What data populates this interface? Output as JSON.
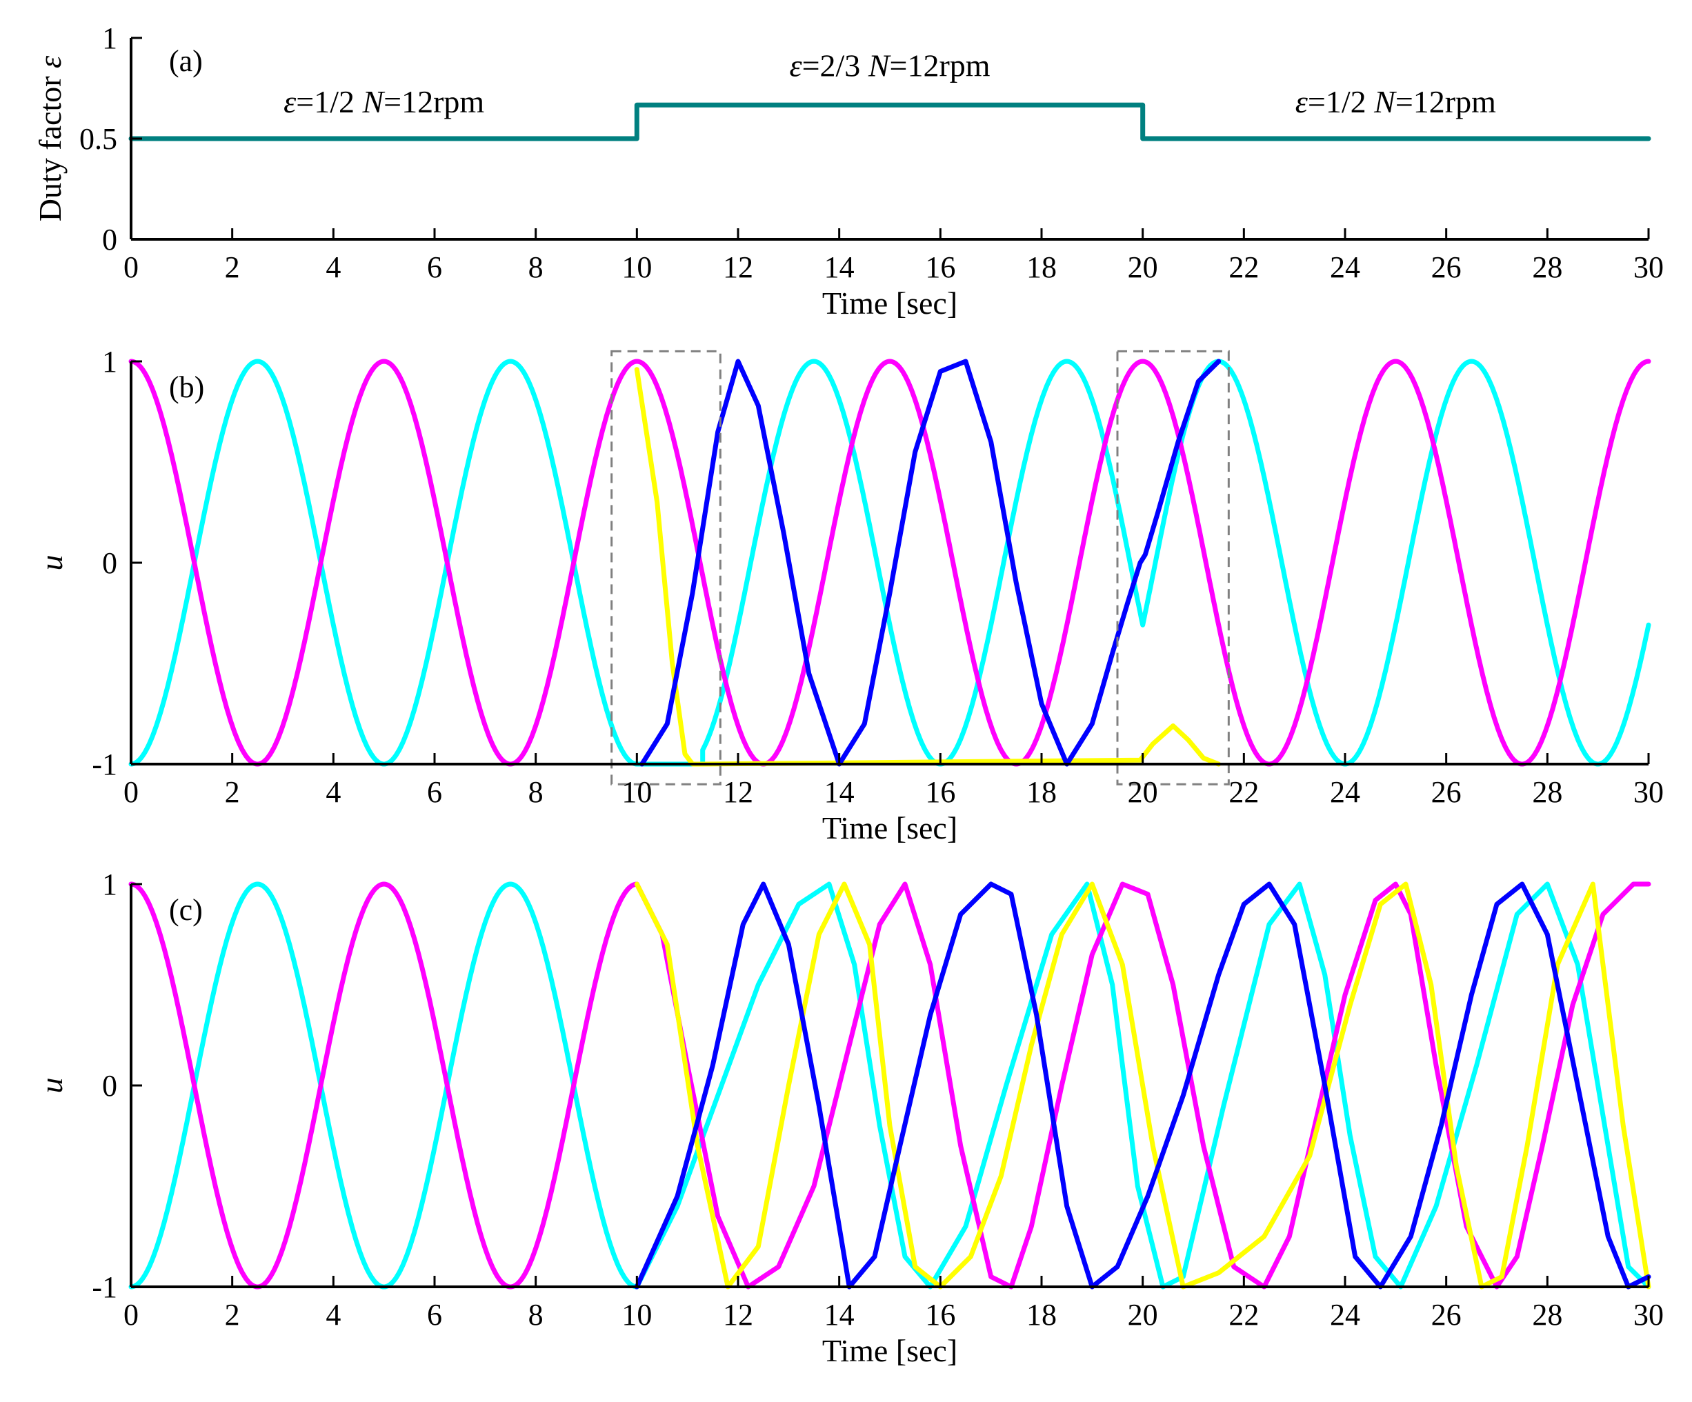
{
  "figure": {
    "colors": {
      "axis": "#000000",
      "duty_line": "#008080",
      "box": "#808080",
      "yellow": "#FFFF00",
      "blue": "#0000FF",
      "cyan": "#00FFFF",
      "magenta": "#FF00FF"
    }
  },
  "chart_data": [
    {
      "id": "a",
      "type": "line",
      "panel_label": "(a)",
      "title": "",
      "xlabel": "Time [sec]",
      "ylabel_text": "Duty factor ",
      "ylabel_symbol": "ε",
      "xlim": [
        0,
        30
      ],
      "ylim": [
        0,
        1
      ],
      "xticks": [
        0,
        2,
        4,
        6,
        8,
        10,
        12,
        14,
        16,
        18,
        20,
        22,
        24,
        26,
        28,
        30
      ],
      "xtick_labels": [
        "0",
        "2",
        "4",
        "6",
        "8",
        "10",
        "12",
        "14",
        "16",
        "18",
        "20",
        "22",
        "24",
        "26",
        "28",
        "30"
      ],
      "yticks": [
        0,
        0.5,
        1
      ],
      "ytick_labels": [
        "0",
        "0.5",
        "1"
      ],
      "series": [
        {
          "name": "duty factor",
          "color_key": "duty_line",
          "x": [
            0,
            10,
            10,
            20,
            20,
            30
          ],
          "y": [
            0.5,
            0.5,
            0.6667,
            0.6667,
            0.5,
            0.5
          ]
        }
      ],
      "annotations": [
        {
          "eps": "ε",
          "eq1": "=1/2 ",
          "n": "N",
          "eq2": "=12rpm",
          "x": 5,
          "y": 0.63
        },
        {
          "eps": "ε",
          "eq1": "=2/3 ",
          "n": "N",
          "eq2": "=12rpm",
          "x": 15,
          "y": 0.81
        },
        {
          "eps": "ε",
          "eq1": "=1/2 ",
          "n": "N",
          "eq2": "=12rpm",
          "x": 25,
          "y": 0.63
        }
      ]
    },
    {
      "id": "b",
      "type": "line",
      "panel_label": "(b)",
      "title": "",
      "xlabel": "Time [sec]",
      "ylabel_symbol": "u",
      "xlim": [
        0,
        30
      ],
      "ylim": [
        -1,
        1
      ],
      "xticks": [
        0,
        2,
        4,
        6,
        8,
        10,
        12,
        14,
        16,
        18,
        20,
        22,
        24,
        26,
        28,
        30
      ],
      "xtick_labels": [
        "0",
        "2",
        "4",
        "6",
        "8",
        "10",
        "12",
        "14",
        "16",
        "18",
        "20",
        "22",
        "24",
        "26",
        "28",
        "30"
      ],
      "yticks": [
        -1,
        0,
        1
      ],
      "ytick_labels": [
        "-1",
        "0",
        "1"
      ],
      "dashed_boxes": [
        {
          "x": [
            9.5,
            11.65
          ],
          "y": [
            -1.1,
            1.05
          ]
        },
        {
          "x": [
            19.5,
            21.7
          ],
          "y": [
            -1.1,
            1.05
          ]
        }
      ],
      "series": [
        {
          "name": "yellow",
          "color_key": "yellow",
          "x": [
            10,
            10.4,
            10.7,
            10.95,
            11.1,
            11.3,
            19.95,
            20.2,
            20.6,
            20.9,
            21.2,
            21.5
          ],
          "y": [
            0.96,
            0.3,
            -0.5,
            -0.95,
            -1,
            -1,
            -0.98,
            -0.9,
            -0.81,
            -0.88,
            -0.97,
            -1
          ]
        },
        {
          "name": "blue",
          "color_key": "blue",
          "x": [
            10.1,
            10.6,
            11.1,
            11.6,
            12.0,
            12.4,
            12.9,
            13.4,
            14.0,
            14.5,
            15.0,
            15.5,
            16.0,
            16.5,
            17.0,
            17.5,
            18.0,
            18.5,
            19.0,
            19.4,
            19.7,
            19.95,
            20.05,
            20.3,
            20.7,
            21.1,
            21.5
          ],
          "y": [
            -1,
            -0.8,
            -0.15,
            0.65,
            1,
            0.78,
            0.15,
            -0.55,
            -1,
            -0.8,
            -0.15,
            0.55,
            0.95,
            1,
            0.6,
            -0.1,
            -0.7,
            -1,
            -0.8,
            -0.45,
            -0.2,
            0.0,
            0.04,
            0.25,
            0.6,
            0.9,
            1
          ]
        }
      ],
      "sinusoids": [
        {
          "name": "cyan",
          "color_key": "cyan",
          "segments": [
            {
              "t0": 0,
              "t1": 10,
              "phase_t": 0,
              "period": 5,
              "sign": -1
            },
            {
              "t0": 10,
              "t1": 11.3,
              "flat": -1
            },
            {
              "t0": 11.3,
              "t1": 20,
              "phase_t": 11.0,
              "period": 5,
              "sign": -1,
              "half_period_shift": 0
            },
            {
              "t0": 20,
              "t1": 30,
              "phase_t": 19.0,
              "period": 5,
              "sign": -1
            }
          ]
        },
        {
          "name": "magenta",
          "color_key": "magenta",
          "segments": [
            {
              "t0": 0,
              "t1": 30,
              "phase_t": 0,
              "period": 5,
              "sign": 1
            }
          ]
        }
      ]
    },
    {
      "id": "c",
      "type": "line",
      "panel_label": "(c)",
      "title": "",
      "xlabel": "Time [sec]",
      "ylabel_symbol": "u",
      "xlim": [
        0,
        30
      ],
      "ylim": [
        -1,
        1
      ],
      "xticks": [
        0,
        2,
        4,
        6,
        8,
        10,
        12,
        14,
        16,
        18,
        20,
        22,
        24,
        26,
        28,
        30
      ],
      "xtick_labels": [
        "0",
        "2",
        "4",
        "6",
        "8",
        "10",
        "12",
        "14",
        "16",
        "18",
        "20",
        "22",
        "24",
        "26",
        "28",
        "30"
      ],
      "yticks": [
        -1,
        0,
        1
      ],
      "ytick_labels": [
        "-1",
        "0",
        "1"
      ],
      "series": [
        {
          "name": "yellow",
          "color_key": "yellow",
          "x": [
            10,
            10.6,
            11.2,
            11.8,
            12.4,
            13.0,
            13.6,
            14.1,
            14.6,
            15.0,
            15.5,
            16.0,
            16.6,
            17.2,
            17.8,
            18.4,
            19.0,
            19.6,
            20.2,
            20.8,
            21.5,
            22.4,
            23.3,
            24.1,
            24.7,
            25.2,
            25.7,
            26.2,
            26.7,
            27.1,
            27.6,
            28.2,
            28.9,
            29.5,
            30
          ],
          "y": [
            1,
            0.7,
            -0.3,
            -1,
            -0.8,
            0.0,
            0.75,
            1,
            0.7,
            -0.2,
            -0.9,
            -1,
            -0.85,
            -0.45,
            0.2,
            0.75,
            1,
            0.6,
            -0.3,
            -1,
            -0.93,
            -0.75,
            -0.35,
            0.4,
            0.9,
            1,
            0.5,
            -0.4,
            -1,
            -0.95,
            -0.3,
            0.6,
            1,
            -0.2,
            -1
          ]
        },
        {
          "name": "blue",
          "color_key": "blue",
          "x": [
            10,
            10.8,
            11.5,
            12.1,
            12.5,
            13.0,
            13.6,
            14.2,
            14.7,
            15.2,
            15.8,
            16.4,
            17.0,
            17.4,
            17.9,
            18.5,
            19.0,
            19.5,
            20.1,
            20.8,
            21.5,
            22.0,
            22.5,
            23.0,
            23.6,
            24.2,
            24.7,
            25.3,
            25.9,
            26.5,
            27.0,
            27.5,
            28.0,
            28.6,
            29.2,
            29.6,
            30
          ],
          "y": [
            -1,
            -0.55,
            0.1,
            0.8,
            1,
            0.7,
            -0.1,
            -1,
            -0.85,
            -0.3,
            0.35,
            0.85,
            1,
            0.95,
            0.35,
            -0.6,
            -1,
            -0.9,
            -0.55,
            -0.05,
            0.55,
            0.9,
            1,
            0.8,
            0.0,
            -0.85,
            -1,
            -0.75,
            -0.2,
            0.45,
            0.9,
            1,
            0.75,
            0.0,
            -0.75,
            -1,
            -0.95
          ]
        }
      ],
      "sinusoids": [
        {
          "name": "cyan",
          "color_key": "cyan",
          "segments": [
            {
              "t0": 0,
              "t1": 10,
              "phase_t": 0,
              "period": 5,
              "sign": -1
            }
          ]
        },
        {
          "name": "magenta",
          "color_key": "magenta",
          "segments": [
            {
              "t0": 0,
              "t1": 10,
              "phase_t": 0,
              "period": 5,
              "sign": 1
            }
          ]
        }
      ],
      "extra_series": [
        {
          "name": "cyan",
          "color_key": "cyan",
          "x": [
            10,
            10.8,
            11.6,
            12.4,
            13.2,
            13.8,
            14.3,
            14.8,
            15.3,
            15.8,
            16.5,
            17.3,
            18.2,
            18.9,
            19.4,
            19.9,
            20.4,
            20.8,
            21.6,
            22.5,
            23.1,
            23.6,
            24.1,
            24.6,
            25.1,
            25.8,
            26.6,
            27.4,
            28.0,
            28.6,
            29.2,
            29.6,
            30
          ],
          "y": [
            -1,
            -0.6,
            -0.05,
            0.5,
            0.9,
            1,
            0.6,
            -0.2,
            -0.85,
            -1,
            -0.7,
            0.0,
            0.75,
            1,
            0.5,
            -0.5,
            -1,
            -0.95,
            -0.1,
            0.8,
            1,
            0.55,
            -0.25,
            -0.85,
            -1,
            -0.6,
            0.1,
            0.85,
            1,
            0.6,
            -0.3,
            -0.9,
            -1
          ]
        },
        {
          "name": "magenta",
          "color_key": "magenta",
          "x": [
            10,
            10.5,
            11.0,
            11.6,
            12.2,
            12.8,
            13.5,
            14.2,
            14.8,
            15.3,
            15.8,
            16.4,
            17.0,
            17.4,
            17.8,
            18.4,
            19.0,
            19.6,
            20.1,
            20.6,
            21.2,
            21.8,
            22.4,
            22.9,
            23.4,
            24.0,
            24.6,
            25.0,
            25.3,
            25.8,
            26.4,
            27.0,
            27.4,
            27.9,
            28.5,
            29.1,
            29.7,
            30
          ],
          "y": [
            1,
            0.75,
            0.1,
            -0.65,
            -1,
            -0.9,
            -0.5,
            0.2,
            0.8,
            1,
            0.6,
            -0.3,
            -0.95,
            -1,
            -0.7,
            0.0,
            0.65,
            1,
            0.95,
            0.5,
            -0.3,
            -0.9,
            -1,
            -0.75,
            -0.2,
            0.45,
            0.92,
            1,
            0.85,
            0.1,
            -0.7,
            -1,
            -0.85,
            -0.3,
            0.4,
            0.85,
            1,
            1
          ]
        }
      ]
    }
  ]
}
